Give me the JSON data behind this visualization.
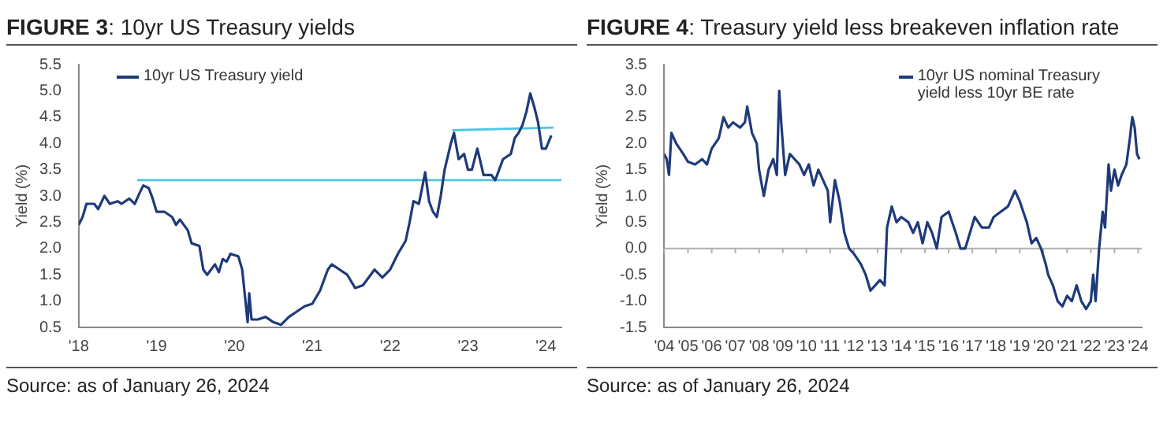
{
  "chart_data": [
    {
      "type": "line",
      "title": "FIGURE 3: 10yr US Treasury yields",
      "ylabel": "Yield (%)",
      "xlim": [
        2018,
        2024.2
      ],
      "xticks": [
        {
          "value": 2018,
          "label": "'18"
        },
        {
          "value": 2019,
          "label": "'19"
        },
        {
          "value": 2020,
          "label": "'20"
        },
        {
          "value": 2021,
          "label": "'21"
        },
        {
          "value": 2022,
          "label": "'22"
        },
        {
          "value": 2023,
          "label": "'23"
        },
        {
          "value": 2024,
          "label": "'24"
        }
      ],
      "ylim": [
        0.5,
        5.5
      ],
      "yticks": [
        {
          "value": 0.5,
          "label": "0.5"
        },
        {
          "value": 1,
          "label": "1.0"
        },
        {
          "value": 1.5,
          "label": "1.5"
        },
        {
          "value": 2,
          "label": "2.0"
        },
        {
          "value": 2.5,
          "label": "2.5"
        },
        {
          "value": 3,
          "label": "3.0"
        },
        {
          "value": 3.5,
          "label": "3.5"
        },
        {
          "value": 4,
          "label": "4.0"
        },
        {
          "value": 4.5,
          "label": "4.5"
        },
        {
          "value": 5,
          "label": "5.0"
        },
        {
          "value": 5.5,
          "label": "5.5"
        }
      ],
      "grid": false,
      "legend": "top left",
      "series": [
        {
          "name": "10yr US Treasury yield",
          "color": "#1f3a7a",
          "x": [
            2018.0,
            2018.05,
            2018.1,
            2018.2,
            2018.25,
            2018.33,
            2018.4,
            2018.5,
            2018.55,
            2018.65,
            2018.72,
            2018.78,
            2018.83,
            2018.9,
            2018.95,
            2019.0,
            2019.1,
            2019.2,
            2019.25,
            2019.3,
            2019.4,
            2019.45,
            2019.55,
            2019.6,
            2019.65,
            2019.75,
            2019.8,
            2019.85,
            2019.9,
            2019.95,
            2020.05,
            2020.1,
            2020.17,
            2020.19,
            2020.22,
            2020.3,
            2020.4,
            2020.5,
            2020.6,
            2020.7,
            2020.8,
            2020.9,
            2021.0,
            2021.1,
            2021.2,
            2021.25,
            2021.35,
            2021.45,
            2021.55,
            2021.65,
            2021.75,
            2021.8,
            2021.9,
            2022.0,
            2022.1,
            2022.2,
            2022.25,
            2022.3,
            2022.37,
            2022.45,
            2022.5,
            2022.55,
            2022.6,
            2022.65,
            2022.7,
            2022.78,
            2022.82,
            2022.88,
            2022.95,
            2023.0,
            2023.05,
            2023.12,
            2023.2,
            2023.3,
            2023.35,
            2023.45,
            2023.55,
            2023.6,
            2023.65,
            2023.7,
            2023.75,
            2023.8,
            2023.85,
            2023.9,
            2023.95,
            2024.0,
            2024.07
          ],
          "values": [
            2.45,
            2.6,
            2.85,
            2.85,
            2.75,
            3.0,
            2.85,
            2.9,
            2.85,
            2.95,
            2.85,
            3.05,
            3.2,
            3.15,
            2.95,
            2.7,
            2.7,
            2.6,
            2.45,
            2.55,
            2.35,
            2.1,
            2.05,
            1.6,
            1.5,
            1.7,
            1.55,
            1.8,
            1.75,
            1.9,
            1.85,
            1.6,
            0.6,
            1.15,
            0.65,
            0.65,
            0.7,
            0.6,
            0.55,
            0.7,
            0.8,
            0.9,
            0.95,
            1.2,
            1.6,
            1.7,
            1.6,
            1.5,
            1.25,
            1.3,
            1.5,
            1.6,
            1.45,
            1.6,
            1.9,
            2.15,
            2.5,
            2.9,
            2.85,
            3.45,
            2.9,
            2.7,
            2.6,
            3.0,
            3.5,
            4.0,
            4.2,
            3.7,
            3.8,
            3.5,
            3.5,
            3.9,
            3.4,
            3.4,
            3.3,
            3.7,
            3.8,
            4.1,
            4.2,
            4.35,
            4.6,
            4.95,
            4.7,
            4.4,
            3.9,
            3.9,
            4.15
          ]
        },
        {
          "type": "line",
          "color": "#4fc6e0",
          "x": [
            2018.75,
            2024.2
          ],
          "values": [
            3.3,
            3.3
          ]
        },
        {
          "type": "line",
          "color": "#4fc6e0",
          "x": [
            2022.8,
            2024.1
          ],
          "values": [
            4.25,
            4.3
          ]
        }
      ],
      "annotations": [
        "Source: as of January 26, 2024"
      ]
    },
    {
      "type": "line",
      "title": "FIGURE 4: Treasury yield less breakeven inflation rate",
      "ylabel": "Yield (%)",
      "xlim": [
        2004,
        2024.15
      ],
      "xticks": [
        {
          "value": 2004,
          "label": "'04"
        },
        {
          "value": 2005,
          "label": "'05"
        },
        {
          "value": 2006,
          "label": "'06"
        },
        {
          "value": 2007,
          "label": "'07"
        },
        {
          "value": 2008,
          "label": "'08"
        },
        {
          "value": 2009,
          "label": "'09"
        },
        {
          "value": 2010,
          "label": "'10"
        },
        {
          "value": 2011,
          "label": "'11"
        },
        {
          "value": 2012,
          "label": "'12"
        },
        {
          "value": 2013,
          "label": "'13"
        },
        {
          "value": 2014,
          "label": "'14"
        },
        {
          "value": 2015,
          "label": "'15"
        },
        {
          "value": 2016,
          "label": "'16"
        },
        {
          "value": 2017,
          "label": "'17"
        },
        {
          "value": 2018,
          "label": "'18"
        },
        {
          "value": 2019,
          "label": "'19"
        },
        {
          "value": 2020,
          "label": "'20"
        },
        {
          "value": 2021,
          "label": "'21"
        },
        {
          "value": 2022,
          "label": "'22"
        },
        {
          "value": 2023,
          "label": "'23"
        },
        {
          "value": 2024,
          "label": "'24"
        }
      ],
      "ylim": [
        -1.5,
        3.5
      ],
      "yticks": [
        {
          "value": -1.5,
          "label": "-1.5"
        },
        {
          "value": -1,
          "label": "-1.0"
        },
        {
          "value": -0.5,
          "label": "-0.5"
        },
        {
          "value": 0,
          "label": "0.0"
        },
        {
          "value": 0.5,
          "label": "0.5"
        },
        {
          "value": 1,
          "label": "1.0"
        },
        {
          "value": 1.5,
          "label": "1.5"
        },
        {
          "value": 2,
          "label": "2.0"
        },
        {
          "value": 2.5,
          "label": "2.5"
        },
        {
          "value": 3,
          "label": "3.0"
        },
        {
          "value": 3.5,
          "label": "3.5"
        }
      ],
      "grid": false,
      "legend": "top right",
      "ref_lines": [
        {
          "axis": "y",
          "value": 0,
          "color": "#b0b0b0"
        }
      ],
      "series": [
        {
          "name": "10yr US nominal Treasury yield less 10yr BE rate",
          "color": "#1f3a7a",
          "x": [
            2004.0,
            2004.1,
            2004.2,
            2004.3,
            2004.5,
            2004.8,
            2005.0,
            2005.3,
            2005.6,
            2005.8,
            2006.0,
            2006.3,
            2006.5,
            2006.7,
            2006.9,
            2007.2,
            2007.4,
            2007.5,
            2007.7,
            2007.9,
            2008.0,
            2008.2,
            2008.4,
            2008.6,
            2008.75,
            2008.85,
            2008.95,
            2009.1,
            2009.3,
            2009.5,
            2009.7,
            2009.9,
            2010.1,
            2010.3,
            2010.5,
            2010.7,
            2010.9,
            2011.0,
            2011.2,
            2011.4,
            2011.6,
            2011.8,
            2012.0,
            2012.3,
            2012.5,
            2012.7,
            2012.9,
            2013.1,
            2013.3,
            2013.4,
            2013.6,
            2013.8,
            2014.0,
            2014.3,
            2014.5,
            2014.7,
            2014.9,
            2015.1,
            2015.3,
            2015.5,
            2015.7,
            2016.0,
            2016.3,
            2016.5,
            2016.7,
            2016.9,
            2017.1,
            2017.4,
            2017.7,
            2017.9,
            2018.2,
            2018.5,
            2018.8,
            2019.0,
            2019.3,
            2019.5,
            2019.7,
            2019.9,
            2020.1,
            2020.2,
            2020.4,
            2020.6,
            2020.8,
            2021.0,
            2021.2,
            2021.4,
            2021.6,
            2021.8,
            2022.0,
            2022.1,
            2022.2,
            2022.35,
            2022.5,
            2022.6,
            2022.75,
            2022.85,
            2023.0,
            2023.15,
            2023.3,
            2023.5,
            2023.65,
            2023.75,
            2023.85,
            2023.95,
            2024.05
          ],
          "values": [
            1.8,
            1.7,
            1.4,
            2.2,
            2.0,
            1.8,
            1.65,
            1.6,
            1.7,
            1.6,
            1.9,
            2.1,
            2.5,
            2.3,
            2.4,
            2.3,
            2.4,
            2.7,
            2.2,
            2.0,
            1.5,
            1.0,
            1.5,
            1.7,
            1.4,
            3.0,
            2.3,
            1.4,
            1.8,
            1.7,
            1.6,
            1.4,
            1.6,
            1.2,
            1.5,
            1.3,
            1.1,
            0.5,
            1.3,
            0.9,
            0.3,
            0.0,
            -0.1,
            -0.3,
            -0.5,
            -0.8,
            -0.7,
            -0.6,
            -0.7,
            0.4,
            0.8,
            0.5,
            0.6,
            0.5,
            0.3,
            0.5,
            0.1,
            0.5,
            0.3,
            0.0,
            0.6,
            0.7,
            0.3,
            0.0,
            0.0,
            0.3,
            0.6,
            0.4,
            0.4,
            0.6,
            0.7,
            0.8,
            1.1,
            0.9,
            0.5,
            0.1,
            0.2,
            0.0,
            -0.3,
            -0.5,
            -0.7,
            -1.0,
            -1.1,
            -0.9,
            -1.0,
            -0.7,
            -1.0,
            -1.15,
            -1.0,
            -0.5,
            -1.0,
            0.0,
            0.7,
            0.4,
            1.6,
            1.1,
            1.5,
            1.2,
            1.4,
            1.6,
            2.1,
            2.5,
            2.3,
            1.8,
            1.7
          ]
        }
      ],
      "annotations": [
        "Source: as of January 26, 2024"
      ]
    }
  ]
}
